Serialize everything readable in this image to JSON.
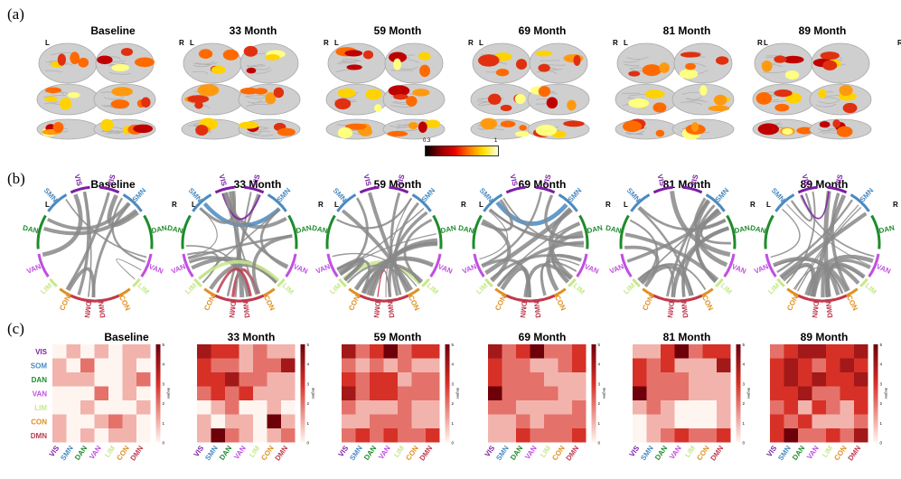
{
  "panels": {
    "a": "(a)",
    "b": "(b)",
    "c": "(c)"
  },
  "timepoints": [
    "Baseline",
    "33 Month",
    "59 Month",
    "69 Month",
    "81 Month",
    "89 Month"
  ],
  "hemi": {
    "left": "L",
    "right": "R"
  },
  "colorbar_a": {
    "min": "0.3",
    "max": "1",
    "colors": [
      "#000000",
      "#8b0000",
      "#e60000",
      "#ff7700",
      "#ffe000",
      "#ffffe0"
    ]
  },
  "networks": [
    {
      "name": "VIS",
      "color": "#7b1fa2"
    },
    {
      "name": "SOM",
      "color": "#4a8ac0"
    },
    {
      "name": "DAN",
      "color": "#1f8b2c"
    },
    {
      "name": "VAN",
      "color": "#c050e0"
    },
    {
      "name": "LIM",
      "color": "#c8e88a"
    },
    {
      "name": "CON",
      "color": "#e09020"
    },
    {
      "name": "DMN",
      "color": "#c03a4e"
    }
  ],
  "chord_labels": [
    "VIS",
    "SMN",
    "DAN",
    "VAN",
    "LIM",
    "CON",
    "DMN"
  ],
  "matrix_cols": [
    "VIS",
    "SMN",
    "DAN",
    "VAN",
    "LIM",
    "CON",
    "DMN"
  ],
  "colorbar_c": {
    "ticks": [
      "5",
      "4",
      "3",
      "2",
      "1",
      "0"
    ],
    "label": "degree"
  },
  "matrices": [
    [
      [
        0,
        1,
        0,
        1,
        0,
        1,
        1
      ],
      [
        1,
        0,
        2,
        0,
        0,
        1,
        0
      ],
      [
        1,
        1,
        1,
        0,
        0,
        1,
        2
      ],
      [
        0,
        0,
        0,
        2,
        0,
        1,
        0
      ],
      [
        0,
        0,
        1,
        0,
        0,
        0,
        1
      ],
      [
        1,
        0,
        0,
        1,
        2,
        1,
        0
      ],
      [
        1,
        0,
        1,
        0,
        1,
        1,
        0
      ]
    ],
    [
      [
        4,
        3,
        3,
        1,
        2,
        1,
        1
      ],
      [
        3,
        2,
        2,
        1,
        2,
        2,
        4
      ],
      [
        3,
        3,
        4,
        2,
        2,
        1,
        1
      ],
      [
        2,
        3,
        2,
        3,
        1,
        1,
        1
      ],
      [
        0,
        1,
        2,
        0,
        0,
        1,
        0
      ],
      [
        1,
        0,
        1,
        1,
        0,
        5,
        1
      ],
      [
        1,
        5,
        2,
        1,
        0,
        1,
        2
      ]
    ],
    [
      [
        4,
        2,
        3,
        5,
        2,
        3,
        3
      ],
      [
        2,
        1,
        2,
        1,
        2,
        1,
        1
      ],
      [
        3,
        2,
        3,
        3,
        1,
        2,
        2
      ],
      [
        4,
        2,
        3,
        3,
        2,
        2,
        2
      ],
      [
        2,
        1,
        1,
        1,
        2,
        1,
        1
      ],
      [
        1,
        1,
        2,
        2,
        2,
        1,
        1
      ],
      [
        2,
        3,
        2,
        3,
        2,
        2,
        3
      ]
    ],
    [
      [
        4,
        2,
        3,
        5,
        2,
        2,
        3
      ],
      [
        3,
        2,
        2,
        1,
        1,
        2,
        3
      ],
      [
        3,
        2,
        2,
        2,
        1,
        1,
        1
      ],
      [
        5,
        2,
        2,
        2,
        2,
        1,
        1
      ],
      [
        2,
        2,
        1,
        1,
        1,
        1,
        2
      ],
      [
        1,
        1,
        2,
        1,
        2,
        2,
        2
      ],
      [
        1,
        1,
        3,
        2,
        2,
        2,
        3
      ]
    ],
    [
      [
        1,
        1,
        3,
        5,
        2,
        3,
        3
      ],
      [
        3,
        2,
        3,
        1,
        1,
        1,
        4
      ],
      [
        3,
        2,
        2,
        2,
        1,
        1,
        1
      ],
      [
        5,
        2,
        2,
        2,
        1,
        1,
        1
      ],
      [
        1,
        2,
        1,
        0,
        0,
        0,
        1
      ],
      [
        0,
        1,
        1,
        0,
        0,
        0,
        1
      ],
      [
        0,
        1,
        2,
        3,
        2,
        2,
        3
      ]
    ],
    [
      [
        2,
        3,
        4,
        4,
        3,
        3,
        4
      ],
      [
        3,
        4,
        3,
        2,
        3,
        4,
        3
      ],
      [
        3,
        4,
        3,
        4,
        3,
        3,
        4
      ],
      [
        3,
        3,
        4,
        2,
        2,
        3,
        3
      ],
      [
        2,
        3,
        1,
        3,
        2,
        1,
        3
      ],
      [
        3,
        2,
        3,
        1,
        1,
        1,
        2
      ],
      [
        3,
        5,
        2,
        2,
        3,
        2,
        4
      ]
    ]
  ],
  "brain": {
    "activation_colors": [
      "#c00000",
      "#e03010",
      "#ff6a00",
      "#ff9a10",
      "#ffd200",
      "#ffff80"
    ]
  }
}
